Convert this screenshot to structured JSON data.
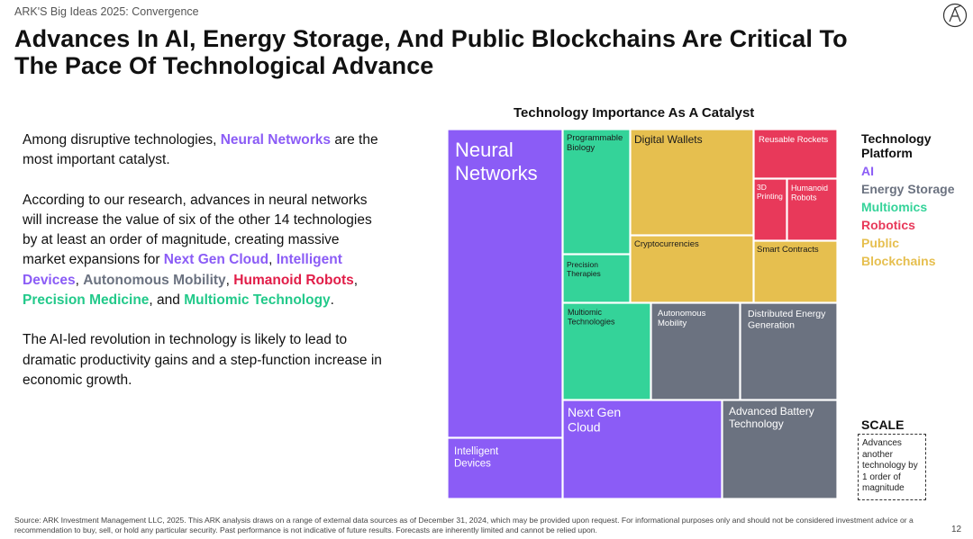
{
  "header": {
    "kicker": "ARK'S Big Ideas 2025: Convergence",
    "title": "Advances In AI, Energy Storage, And Public Blockchains Are Critical To The Pace Of Technological Advance"
  },
  "body": {
    "p1_pre": "Among disruptive technologies, ",
    "p1_hl": "Neural Networks",
    "p1_post": " are the most important catalyst.",
    "p2_pre": "According to our research, advances in neural networks will increase the value of six of the other 14 technologies by at least an order of magnitude, creating massive market expansions for ",
    "p2_hl1": "Next Gen Cloud",
    "p2_sep1": ", ",
    "p2_hl2": "Intelligent Devices",
    "p2_sep2": ", ",
    "p2_hl3": "Autonomous Mobility",
    "p2_sep3": ", ",
    "p2_hl4": "Humanoid Robots",
    "p2_sep4": ", ",
    "p2_hl5": "Precision Medicine",
    "p2_sep5": ", and ",
    "p2_hl6": "Multiomic Technology",
    "p2_end": ".",
    "p3": "The AI-led revolution in technology is likely to lead to dramatic productivity gains and a step-function increase in economic growth."
  },
  "colors": {
    "ai": "#8b5cf6",
    "energy": "#6b7280",
    "multiomics": "#34d399",
    "robotics": "#e8395a",
    "blockchains": "#e6bf4f"
  },
  "chart_data": {
    "type": "treemap",
    "title": "Technology Importance As A Catalyst",
    "tiles": [
      {
        "name": "Neural Networks",
        "platform": "ai"
      },
      {
        "name": "Intelligent Devices",
        "platform": "ai"
      },
      {
        "name": "Programmable Biology",
        "platform": "multiomics"
      },
      {
        "name": "Precision Therapies",
        "platform": "multiomics"
      },
      {
        "name": "Digital Wallets",
        "platform": "blockchains"
      },
      {
        "name": "Cryptocurrencies",
        "platform": "blockchains"
      },
      {
        "name": "Reusable Rockets",
        "platform": "robotics"
      },
      {
        "name": "3D Printing",
        "platform": "robotics"
      },
      {
        "name": "Humanoid Robots",
        "platform": "robotics"
      },
      {
        "name": "Smart Contracts",
        "platform": "blockchains"
      },
      {
        "name": "Multiomic Technologies",
        "platform": "multiomics"
      },
      {
        "name": "Autonomous Mobility",
        "platform": "robotics_gray"
      },
      {
        "name": "Distributed Energy Generation",
        "platform": "energy"
      },
      {
        "name": "Next Gen Cloud",
        "platform": "ai"
      },
      {
        "name": "Advanced Battery Technology",
        "platform": "energy"
      }
    ],
    "legend": {
      "title": "Technology Platform",
      "entries": [
        {
          "label": "AI",
          "platform": "ai"
        },
        {
          "label": "Energy Storage",
          "platform": "energy"
        },
        {
          "label": "Multiomics",
          "platform": "multiomics"
        },
        {
          "label": "Robotics",
          "platform": "robotics"
        },
        {
          "label": "Public Blockchains",
          "platform": "blockchains"
        }
      ]
    },
    "scale": {
      "title": "SCALE",
      "text": "Advances another technology by 1 order of magnitude"
    }
  },
  "footer": {
    "source": "Source: ARK Investment Management LLC, 2025. This ARK analysis draws on a range of external data sources as of December 31, 2024, which may be provided upon request. For informational purposes only and should not be considered investment advice or a recommendation to buy, sell, or hold any particular security. Past performance is not indicative of future results. Forecasts are inherently limited and cannot be relied upon.",
    "page": "12"
  }
}
